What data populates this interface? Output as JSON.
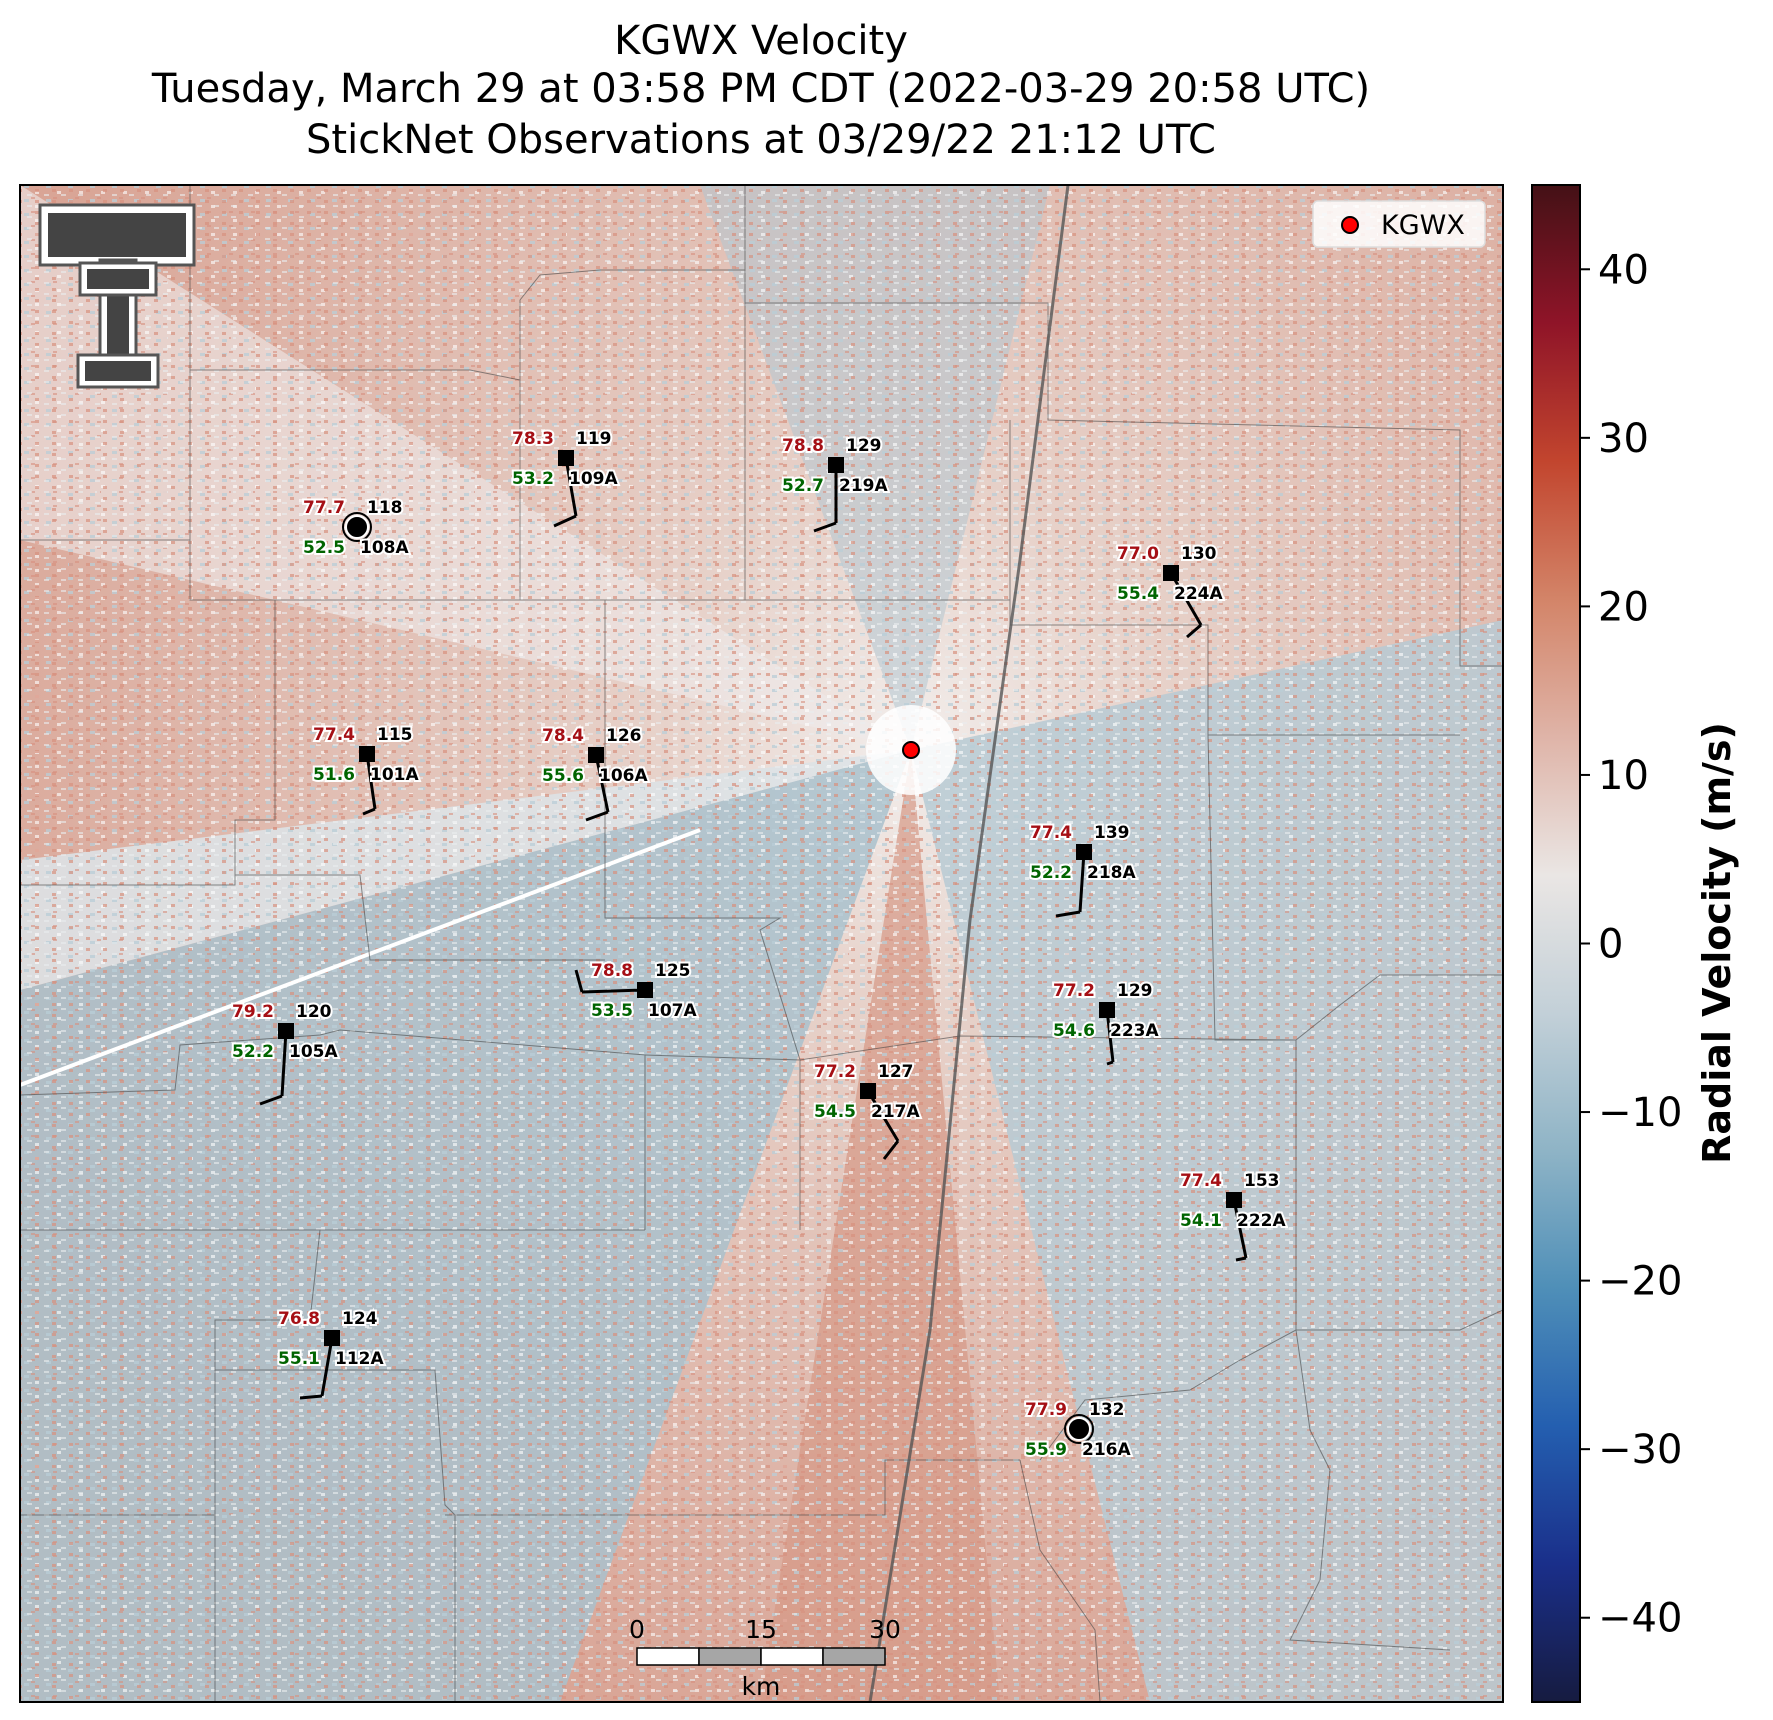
{
  "title": {
    "line1": "KGWX Velocity",
    "line2": "Tuesday, March 29 at 03:58 PM CDT (2022-03-29 20:58 UTC)",
    "line3": "StickNet Observations at 03/29/22 21:12 UTC"
  },
  "legend": {
    "label": "KGWX",
    "marker_color": "#ff0000"
  },
  "logo": {
    "name": "texas-tech-double-t-logo"
  },
  "colorbar": {
    "label": "Radial Velocity (m/s)",
    "range": [
      -45,
      45
    ],
    "ticks": [
      "40",
      "30",
      "20",
      "10",
      "0",
      "−10",
      "−20",
      "−30",
      "−40"
    ],
    "tick_values": [
      40,
      30,
      20,
      10,
      0,
      -10,
      -20,
      -30,
      -40
    ],
    "colors": [
      "#441116",
      "#8f1428",
      "#c2452e",
      "#d38468",
      "#dfb4a8",
      "#eae6e4",
      "#c3d0d8",
      "#8fb4c6",
      "#4f8fb8",
      "#245fb0",
      "#1a2f8a",
      "#161b40"
    ]
  },
  "scale_bar": {
    "labels": [
      "0",
      "15",
      "30"
    ],
    "unit": "km"
  },
  "stations": [
    {
      "id": "108A",
      "temp": "77.7",
      "dew": "52.5",
      "dir": "118",
      "marker": "circle"
    },
    {
      "id": "109A",
      "temp": "78.3",
      "dew": "53.2",
      "dir": "119",
      "marker": "square"
    },
    {
      "id": "219A",
      "temp": "78.8",
      "dew": "52.7",
      "dir": "129",
      "marker": "square"
    },
    {
      "id": "224A",
      "temp": "77.0",
      "dew": "55.4",
      "dir": "130",
      "marker": "square"
    },
    {
      "id": "101A",
      "temp": "77.4",
      "dew": "51.6",
      "dir": "115",
      "marker": "square"
    },
    {
      "id": "106A",
      "temp": "78.4",
      "dew": "55.6",
      "dir": "126",
      "marker": "square"
    },
    {
      "id": "218A",
      "temp": "77.4",
      "dew": "52.2",
      "dir": "139",
      "marker": "square"
    },
    {
      "id": "107A",
      "temp": "78.8",
      "dew": "53.5",
      "dir": "125",
      "marker": "square"
    },
    {
      "id": "223A",
      "temp": "77.2",
      "dew": "54.6",
      "dir": "129",
      "marker": "square"
    },
    {
      "id": "105A",
      "temp": "79.2",
      "dew": "52.2",
      "dir": "120",
      "marker": "square"
    },
    {
      "id": "217A",
      "temp": "77.2",
      "dew": "54.5",
      "dir": "127",
      "marker": "square"
    },
    {
      "id": "222A",
      "temp": "77.4",
      "dew": "54.1",
      "dir": "153",
      "marker": "square"
    },
    {
      "id": "112A",
      "temp": "76.8",
      "dew": "55.1",
      "dir": "124",
      "marker": "square"
    },
    {
      "id": "216A",
      "temp": "77.9",
      "dew": "55.9",
      "dir": "132",
      "marker": "circle"
    }
  ]
}
